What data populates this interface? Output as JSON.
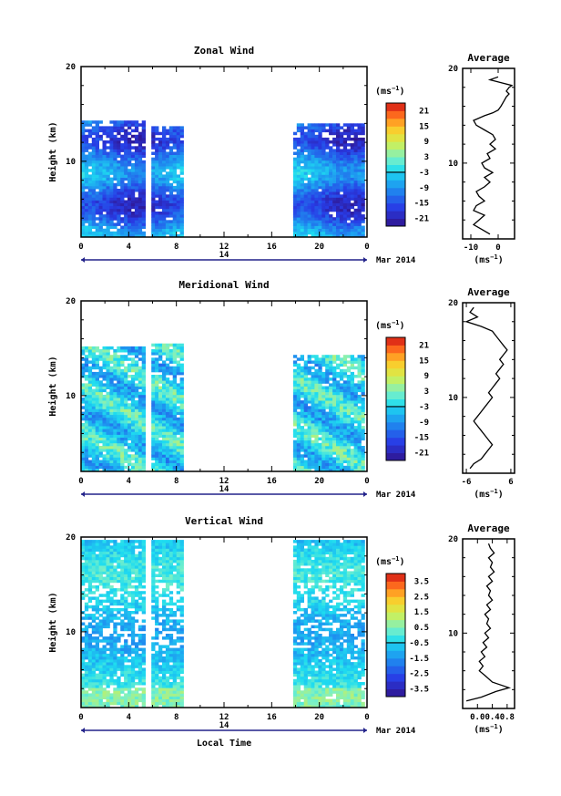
{
  "chart_data": [
    {
      "type": "heatmap",
      "title": "Zonal Wind",
      "ylabel": "Height (km)",
      "ylim": [
        2,
        20
      ],
      "y_ticks": [
        "10",
        "20"
      ],
      "x_ticks": [
        "0",
        "4",
        "8",
        "12",
        "16",
        "20",
        "0"
      ],
      "date_day": "14",
      "date_month": "Mar 2014",
      "colorbar": {
        "unit": "(ms",
        "unit_sup": "−1",
        "unit_close": ")",
        "ticks": [
          "21",
          "15",
          "9",
          "3",
          "-3",
          "-9",
          "-15",
          "-21"
        ],
        "range": [
          -24,
          24
        ]
      },
      "data_segments": [
        {
          "t0": 0.0,
          "t1": 5.3,
          "top": 14.3
        },
        {
          "t0": 5.9,
          "t1": 8.4,
          "top": 13.6
        },
        {
          "t0": 17.8,
          "t1": 23.6,
          "top": 13.8
        }
      ],
      "profile": {
        "title": "Average",
        "xlabel": "(ms",
        "xlabel_sup": "−1",
        "xlabel_close": ")",
        "x_ticks": [
          "-10",
          "0"
        ],
        "y_ticks": [
          "10",
          "20"
        ],
        "xlim": [
          -13,
          6
        ],
        "ylim": [
          2,
          20
        ],
        "x": [
          -3,
          -6,
          -9,
          -7,
          -5,
          -9,
          -8,
          -5,
          -7,
          -8,
          -5,
          -3,
          -5,
          -2,
          -5,
          -6,
          -3,
          -4,
          -1,
          -3,
          -1,
          -2,
          -5,
          -8,
          -9,
          -5,
          -2,
          0,
          1,
          2,
          3,
          4,
          3,
          4,
          5,
          1,
          -3,
          0
        ],
        "y": [
          2.5,
          3,
          3.5,
          4,
          4.5,
          5,
          5.5,
          6,
          6.5,
          7,
          7.5,
          8,
          8.5,
          9,
          9.5,
          10,
          10.5,
          11,
          11.5,
          12,
          12.5,
          13,
          13.5,
          14,
          14.5,
          15,
          15.3,
          15.6,
          16,
          16.5,
          17,
          17.3,
          17.6,
          18,
          18.2,
          18.5,
          18.8,
          19.1
        ]
      }
    },
    {
      "type": "heatmap",
      "title": "Meridional Wind",
      "ylabel": "Height (km)",
      "ylim": [
        2,
        20
      ],
      "y_ticks": [
        "10",
        "20"
      ],
      "x_ticks": [
        "0",
        "4",
        "8",
        "12",
        "16",
        "20",
        "0"
      ],
      "date_day": "14",
      "date_month": "Mar 2014",
      "colorbar": {
        "unit": "(ms",
        "unit_sup": "−1",
        "unit_close": ")",
        "ticks": [
          "21",
          "15",
          "9",
          "3",
          "-3",
          "-9",
          "-15",
          "-21"
        ],
        "range": [
          -24,
          24
        ]
      },
      "data_segments": [
        {
          "t0": 0.0,
          "t1": 5.3,
          "top": 15.2
        },
        {
          "t0": 5.9,
          "t1": 8.4,
          "top": 15.5
        },
        {
          "t0": 17.8,
          "t1": 23.6,
          "top": 14.2
        }
      ],
      "profile": {
        "title": "Average",
        "xlabel": "(ms",
        "xlabel_sup": "−1",
        "xlabel_close": ")",
        "x_ticks": [
          "-6",
          "6"
        ],
        "y_ticks": [
          "10",
          "20"
        ],
        "xlim": [
          -7,
          7
        ],
        "ylim": [
          2,
          20
        ],
        "x": [
          -5,
          -4,
          -2,
          -1,
          0,
          1,
          0,
          -1,
          -2,
          -3,
          -4,
          -3,
          -2,
          -1,
          0,
          1,
          0,
          1,
          2,
          3,
          2,
          3,
          4,
          3,
          4,
          5,
          4,
          3,
          2,
          1,
          -2,
          -6,
          -3,
          -5,
          -4
        ],
        "y": [
          2.5,
          3,
          3.5,
          4,
          4.5,
          5,
          5.5,
          6,
          6.5,
          7,
          7.5,
          8,
          8.5,
          9,
          9.5,
          10,
          10.5,
          11,
          11.5,
          12,
          12.5,
          13,
          13.5,
          14,
          14.5,
          15,
          15.5,
          16,
          16.5,
          17,
          17.5,
          18,
          18.5,
          19,
          19.5
        ]
      }
    },
    {
      "type": "heatmap",
      "title": "Vertical Wind",
      "ylabel": "Height (km)",
      "xlabel": "Local Time",
      "ylim": [
        2,
        20
      ],
      "y_ticks": [
        "10",
        "20"
      ],
      "x_ticks": [
        "0",
        "4",
        "8",
        "12",
        "16",
        "20",
        "0"
      ],
      "date_day": "14",
      "date_month": "Mar 2014",
      "colorbar": {
        "unit": "(ms",
        "unit_sup": "−1",
        "unit_close": ")",
        "ticks": [
          "3.5",
          "2.5",
          "1.5",
          "0.5",
          "-0.5",
          "-1.5",
          "-2.5",
          "-3.5"
        ],
        "range": [
          -4,
          4
        ]
      },
      "data_segments": [
        {
          "t0": 0.0,
          "t1": 5.3,
          "top": 19.5
        },
        {
          "t0": 5.9,
          "t1": 8.4,
          "top": 19.5
        },
        {
          "t0": 17.8,
          "t1": 23.6,
          "top": 19.5
        }
      ],
      "profile": {
        "title": "Average",
        "xlabel": "(ms",
        "xlabel_sup": "−1",
        "xlabel_close": ")",
        "x_ticks": [
          "0.0",
          "0.4",
          "0.8"
        ],
        "y_ticks": [
          "10",
          "20"
        ],
        "xlim": [
          -0.4,
          1.0
        ],
        "ylim": [
          2,
          20
        ],
        "x": [
          -0.3,
          0.1,
          0.5,
          0.85,
          0.4,
          0.2,
          0.05,
          0.15,
          0.05,
          0.2,
          0.1,
          0.25,
          0.15,
          0.3,
          0.2,
          0.35,
          0.25,
          0.3,
          0.2,
          0.35,
          0.25,
          0.4,
          0.3,
          0.35,
          0.25,
          0.4,
          0.3,
          0.45,
          0.35,
          0.4,
          0.3,
          0.45,
          0.35,
          0.3
        ],
        "y": [
          2.8,
          3.2,
          3.8,
          4.2,
          4.8,
          5.5,
          6,
          6.5,
          7,
          7.5,
          8,
          8.5,
          9,
          9.5,
          10,
          10.5,
          11,
          11.5,
          12,
          12.5,
          13,
          13.5,
          14,
          14.5,
          15,
          15.5,
          16,
          16.5,
          17,
          17.5,
          18,
          18.5,
          19,
          19.5
        ]
      }
    }
  ]
}
